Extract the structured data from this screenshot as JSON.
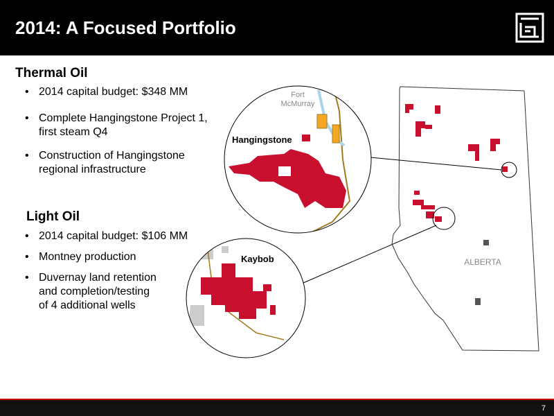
{
  "header": {
    "title": "2014: A Focused Portfolio"
  },
  "sections": [
    {
      "title": "Thermal Oil",
      "bullets": [
        [
          "2014 capital budget: $348 MM"
        ],
        [
          "Complete Hangingstone Project 1,",
          "first steam Q4"
        ],
        [
          "Construction of Hangingstone",
          "regional infrastructure"
        ]
      ]
    },
    {
      "title": "Light Oil",
      "bullets": [
        [
          "2014 capital budget: $106 MM"
        ],
        [
          "Montney production"
        ],
        [
          "Duvernay land retention",
          "and completion/testing",
          "of 4 additional wells"
        ]
      ]
    }
  ],
  "map": {
    "town": [
      "Fort",
      "McMurray"
    ],
    "thermal_label": "Hangingstone",
    "light_label": "Kaybob",
    "province": "ALBERTA"
  },
  "footer": {
    "page": "7"
  }
}
